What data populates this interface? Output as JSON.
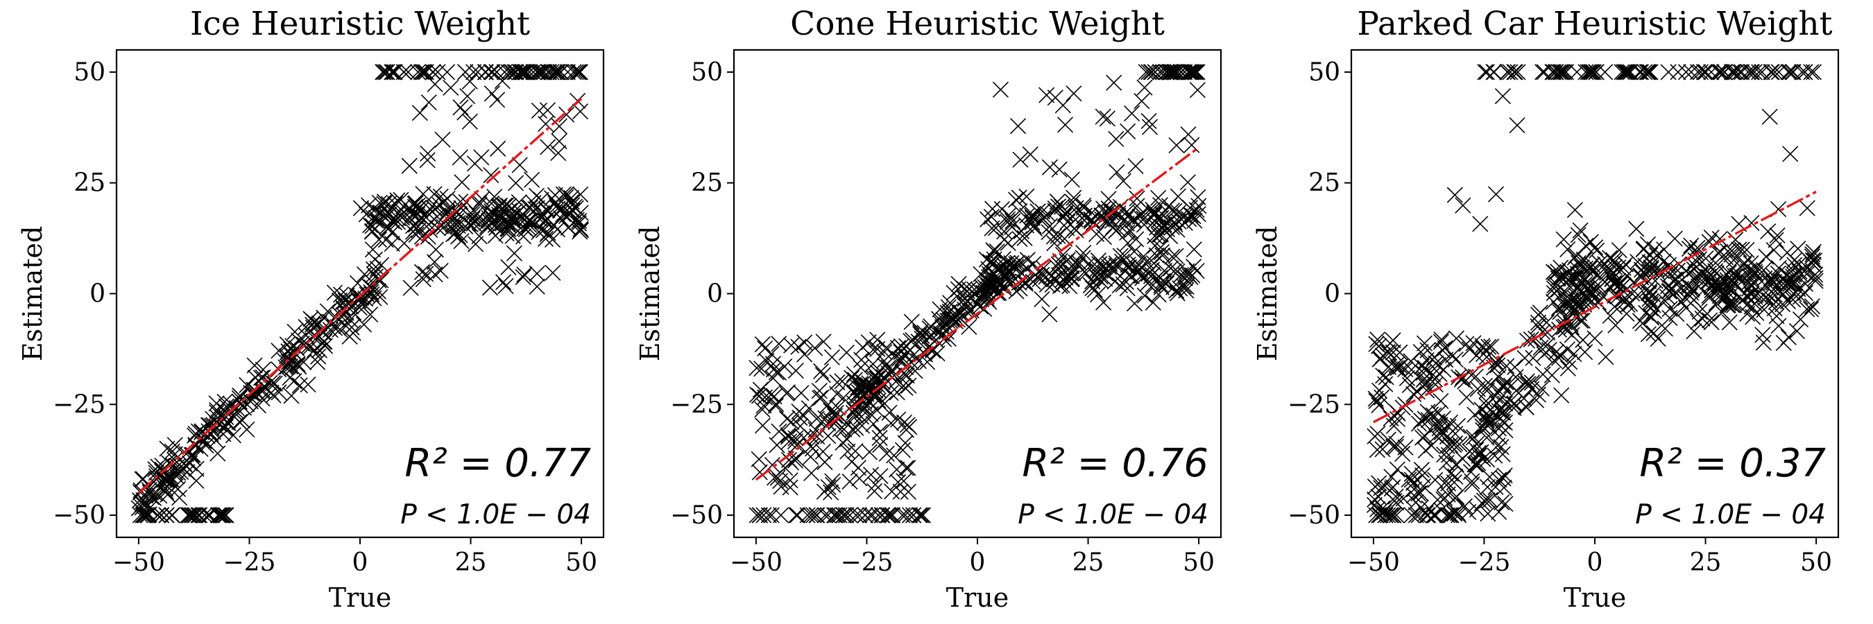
{
  "chart_data": [
    {
      "type": "scatter",
      "title": "Ice Heuristic Weight",
      "xlabel": "True",
      "ylabel": "Estimated",
      "xlim": [
        -55,
        55
      ],
      "ylim": [
        -55,
        55
      ],
      "xticks": [
        -50,
        -25,
        0,
        25,
        50
      ],
      "yticks": [
        -50,
        -25,
        0,
        25,
        50
      ],
      "fit": {
        "x": [
          -50,
          50
        ],
        "y": [
          -45,
          44
        ]
      },
      "r2_text": "R² = 0.77",
      "p_text": "P < 1.0E − 04",
      "marker": "x",
      "clusters": [
        {
          "desc": "linear band",
          "x": [
            -50,
            5
          ],
          "slope": 0.92,
          "intercept": -1,
          "noise": 3,
          "n": 260
        },
        {
          "desc": "saturation top",
          "x": [
            5,
            50
          ],
          "y": [
            50,
            50
          ],
          "noise": 0,
          "n": 70
        },
        {
          "desc": "plateau",
          "x": [
            0,
            50
          ],
          "y": [
            17,
            17
          ],
          "noise": 2.5,
          "n": 230
        },
        {
          "desc": "bottom floor",
          "x": [
            -50,
            -30
          ],
          "y": [
            -50,
            -50
          ],
          "noise": 0,
          "n": 40
        },
        {
          "desc": "scatter upper",
          "x": [
            8,
            50
          ],
          "y": [
            20,
            48
          ],
          "noise": 0,
          "n": 40
        },
        {
          "desc": "scatter lower",
          "x": [
            10,
            50
          ],
          "y": [
            0,
            10
          ],
          "noise": 0,
          "n": 18
        }
      ]
    },
    {
      "type": "scatter",
      "title": "Cone Heuristic Weight",
      "xlabel": "True",
      "ylabel": "Estimated",
      "xlim": [
        -55,
        55
      ],
      "ylim": [
        -55,
        55
      ],
      "xticks": [
        -50,
        -25,
        0,
        25,
        50
      ],
      "yticks": [
        -50,
        -25,
        0,
        25,
        50
      ],
      "fit": {
        "x": [
          -50,
          50
        ],
        "y": [
          -42,
          33
        ]
      },
      "r2_text": "R² = 0.76",
      "p_text": "P < 1.0E − 04",
      "marker": "x",
      "clusters": [
        {
          "desc": "linear band",
          "x": [
            -28,
            8
          ],
          "slope": 0.9,
          "intercept": 0,
          "noise": 2.5,
          "n": 180
        },
        {
          "desc": "low cloud",
          "x": [
            -50,
            -15
          ],
          "y": [
            -45,
            -10
          ],
          "noise": 0,
          "n": 180
        },
        {
          "desc": "bottom floor",
          "x": [
            -50,
            -12
          ],
          "y": [
            -50,
            -50
          ],
          "noise": 0,
          "n": 50
        },
        {
          "desc": "upper plateau",
          "x": [
            2,
            50
          ],
          "y": [
            17,
            17
          ],
          "noise": 2.5,
          "n": 150
        },
        {
          "desc": "lower plateau",
          "x": [
            2,
            50
          ],
          "y": [
            4,
            4
          ],
          "noise": 3,
          "n": 170
        },
        {
          "desc": "saturation top",
          "x": [
            38,
            50
          ],
          "y": [
            50,
            50
          ],
          "noise": 0,
          "n": 35
        },
        {
          "desc": "scatter upper",
          "x": [
            5,
            50
          ],
          "y": [
            25,
            48
          ],
          "noise": 0,
          "n": 30
        }
      ]
    },
    {
      "type": "scatter",
      "title": "Parked Car Heuristic Weight",
      "xlabel": "True",
      "ylabel": "Estimated",
      "xlim": [
        -55,
        55
      ],
      "ylim": [
        -55,
        55
      ],
      "xticks": [
        -50,
        -25,
        0,
        25,
        50
      ],
      "yticks": [
        -50,
        -25,
        0,
        25,
        50
      ],
      "fit": {
        "x": [
          -50,
          50
        ],
        "y": [
          -29,
          23
        ]
      },
      "r2_text": "R² = 0.37",
      "p_text": "P < 1.0E − 04",
      "marker": "x",
      "clusters": [
        {
          "desc": "low cloud",
          "x": [
            -50,
            -20
          ],
          "y": [
            -50,
            -10
          ],
          "noise": 0,
          "n": 230
        },
        {
          "desc": "rising band",
          "x": [
            -28,
            0
          ],
          "slope": 1.2,
          "intercept": 0,
          "noise": 6,
          "n": 110
        },
        {
          "desc": "flat band",
          "x": [
            -10,
            50
          ],
          "y": [
            2,
            2
          ],
          "noise": 5,
          "n": 380
        },
        {
          "desc": "saturation top",
          "x": [
            -25,
            50
          ],
          "y": [
            50,
            50
          ],
          "noise": 0,
          "n": 90
        },
        {
          "desc": "bottom floor",
          "x": [
            -50,
            -30
          ],
          "y": [
            -50,
            -50
          ],
          "noise": 0,
          "n": 25
        },
        {
          "desc": "sparse outliers",
          "x": [
            -50,
            50
          ],
          "y": [
            -30,
            45
          ],
          "noise": 0,
          "n": 25
        }
      ]
    }
  ]
}
